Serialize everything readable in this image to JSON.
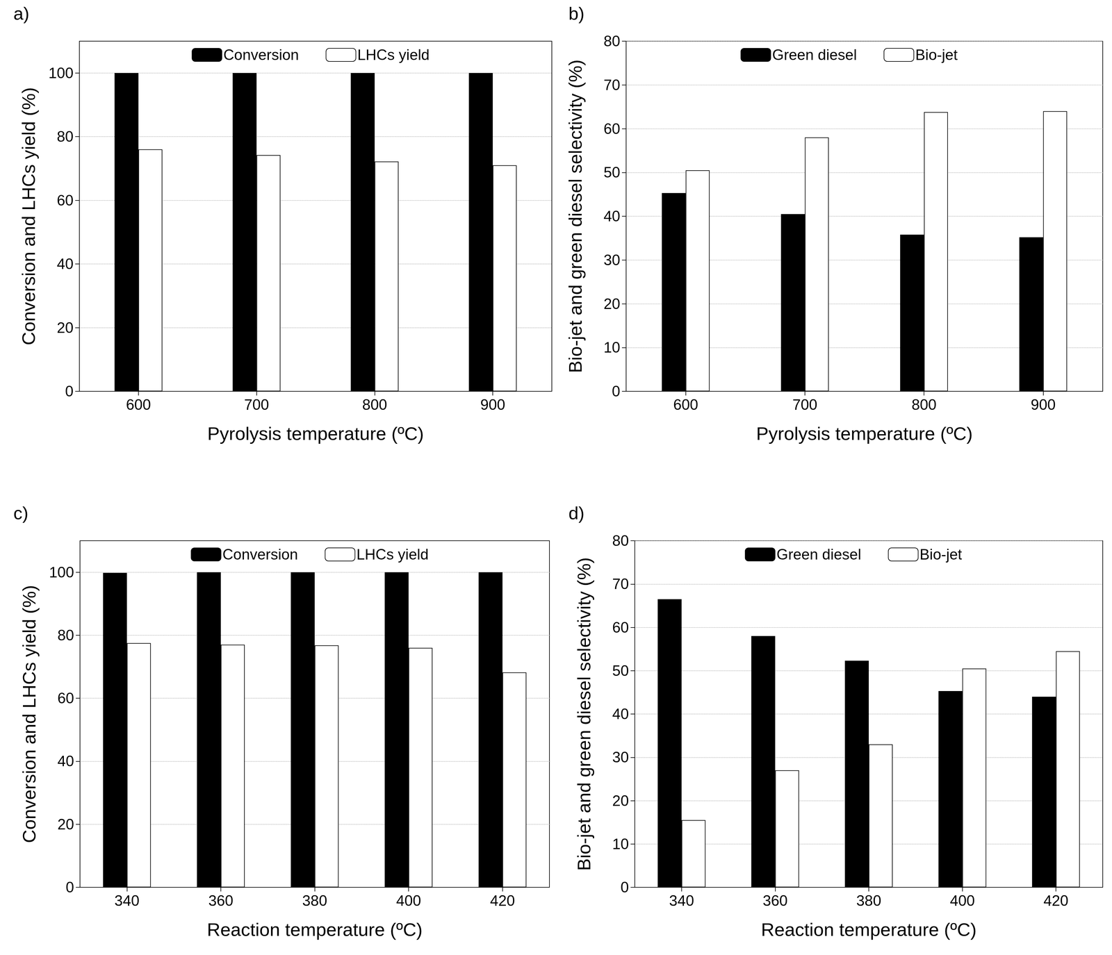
{
  "chart_data": [
    {
      "type": "bar",
      "title": "a)",
      "x_label": "Pyrolysis temperature (ºC)",
      "y_label": "Conversion and LHCs yield (%)",
      "categories": [
        600,
        700,
        800,
        900
      ],
      "series": [
        {
          "name": "Conversion",
          "color": "#000000",
          "values": [
            100,
            100,
            100,
            100
          ]
        },
        {
          "name": "LHCs yield",
          "color": "#ffffff",
          "values": [
            76,
            74.2,
            72.2,
            71
          ]
        }
      ],
      "ylim": [
        0,
        110
      ],
      "yticks": [
        0,
        20,
        40,
        60,
        80,
        100
      ],
      "grid": true,
      "legend": "top"
    },
    {
      "type": "bar",
      "title": "b)",
      "x_label": "Pyrolysis temperature (ºC)",
      "y_label": "Bio-jet and green diesel selectivity (%)",
      "categories": [
        600,
        700,
        800,
        900
      ],
      "series": [
        {
          "name": "Green diesel",
          "color": "#000000",
          "values": [
            45.3,
            40.5,
            35.8,
            35.2
          ]
        },
        {
          "name": "Bio-jet",
          "color": "#ffffff",
          "values": [
            50.5,
            58,
            63.8,
            64
          ]
        }
      ],
      "ylim": [
        0,
        80
      ],
      "yticks": [
        0,
        10,
        20,
        30,
        40,
        50,
        60,
        70,
        80
      ],
      "grid": true,
      "legend": "top"
    },
    {
      "type": "bar",
      "title": "c)",
      "x_label": "Reaction temperature (ºC)",
      "y_label": "Conversion and LHCs yield (%)",
      "categories": [
        340,
        360,
        380,
        400,
        420
      ],
      "series": [
        {
          "name": "Conversion",
          "color": "#000000",
          "values": [
            99.8,
            100,
            100,
            100,
            100
          ]
        },
        {
          "name": "LHCs yield",
          "color": "#ffffff",
          "values": [
            77.5,
            77,
            76.8,
            76,
            68.2
          ]
        }
      ],
      "ylim": [
        0,
        110
      ],
      "yticks": [
        0,
        20,
        40,
        60,
        80,
        100
      ],
      "grid": true,
      "legend": "top"
    },
    {
      "type": "bar",
      "title": "d)",
      "x_label": "Reaction temperature (ºC)",
      "y_label": "Bio-jet and green diesel selectivity (%)",
      "categories": [
        340,
        360,
        380,
        400,
        420
      ],
      "series": [
        {
          "name": "Green diesel",
          "color": "#000000",
          "values": [
            66.5,
            58,
            52.3,
            45.3,
            44
          ]
        },
        {
          "name": "Bio-jet",
          "color": "#ffffff",
          "values": [
            15.5,
            27,
            33,
            50.5,
            54.5
          ]
        }
      ],
      "ylim": [
        0,
        80
      ],
      "yticks": [
        0,
        10,
        20,
        30,
        40,
        50,
        60,
        70,
        80
      ],
      "grid": true,
      "legend": "top"
    }
  ]
}
